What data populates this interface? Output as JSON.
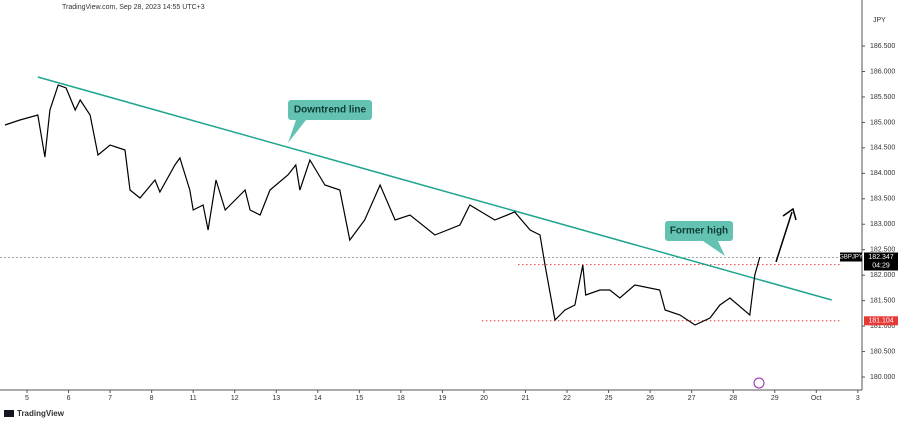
{
  "header": "TradingView.com, Sep 28, 2023 14:55 UTC+3",
  "footer": "TradingView",
  "chart_data": {
    "type": "line",
    "currency": "JPY",
    "symbol": "GBPJPY",
    "last_price": 182.347,
    "countdown": "04:29",
    "annotations": [
      "Downtrend line",
      "Former high"
    ],
    "xlim": [
      -0.65,
      20.1
    ],
    "ylim": [
      179.745,
      187.404
    ],
    "xticks": [
      {
        "value": 0,
        "label": "5"
      },
      {
        "value": 1,
        "label": "6"
      },
      {
        "value": 2,
        "label": "7"
      },
      {
        "value": 3,
        "label": "8"
      },
      {
        "value": 4,
        "label": "11"
      },
      {
        "value": 5,
        "label": "12"
      },
      {
        "value": 6,
        "label": "13"
      },
      {
        "value": 7,
        "label": "14"
      },
      {
        "value": 8,
        "label": "15"
      },
      {
        "value": 9,
        "label": "18"
      },
      {
        "value": 10,
        "label": "19"
      },
      {
        "value": 11,
        "label": "20"
      },
      {
        "value": 12,
        "label": "21"
      },
      {
        "value": 13,
        "label": "22"
      },
      {
        "value": 14,
        "label": "25"
      },
      {
        "value": 15,
        "label": "26"
      },
      {
        "value": 16,
        "label": "27"
      },
      {
        "value": 17,
        "label": "28"
      },
      {
        "value": 18,
        "label": "29"
      },
      {
        "value": 19,
        "label": "Oct"
      },
      {
        "value": 20,
        "label": "3"
      }
    ],
    "yticks": [
      {
        "value": 180,
        "label": "180.000"
      },
      {
        "value": 180.5,
        "label": "180.500"
      },
      {
        "value": 181,
        "label": "181.000"
      },
      {
        "value": 181.5,
        "label": "181.500"
      },
      {
        "value": 182,
        "label": "182.000"
      },
      {
        "value": 182.5,
        "label": "182.500"
      },
      {
        "value": 183,
        "label": "183.000"
      },
      {
        "value": 183.5,
        "label": "183.500"
      },
      {
        "value": 184,
        "label": "184.000"
      },
      {
        "value": 184.5,
        "label": "184.500"
      },
      {
        "value": 185,
        "label": "185.000"
      },
      {
        "value": 185.5,
        "label": "185.500"
      },
      {
        "value": 186,
        "label": "186.000"
      },
      {
        "value": 186.5,
        "label": "186.500"
      }
    ],
    "x": [
      -0.53,
      -0.17,
      0.26,
      0.43,
      0.55,
      0.75,
      0.94,
      1.16,
      1.28,
      1.52,
      1.71,
      2.0,
      2.36,
      2.48,
      2.72,
      3.08,
      3.2,
      3.56,
      3.68,
      3.92,
      4.0,
      4.24,
      4.36,
      4.55,
      4.77,
      5.25,
      5.37,
      5.61,
      5.85,
      6.28,
      6.47,
      6.57,
      6.81,
      7.17,
      7.53,
      7.77,
      8.13,
      8.5,
      8.86,
      9.22,
      9.82,
      10.42,
      10.66,
      11.26,
      11.74,
      12.11,
      12.35,
      12.47,
      12.71,
      12.95,
      13.19,
      13.38,
      13.45,
      13.79,
      14.03,
      14.27,
      14.63,
      15.23,
      15.36,
      15.72,
      16.08,
      16.44,
      16.68,
      16.92,
      17.4,
      17.52,
      17.64
    ],
    "series": [
      {
        "name": "GBPJPY",
        "color": "#000000",
        "values": [
          184.949,
          185.047,
          185.146,
          184.321,
          185.244,
          185.735,
          185.676,
          185.244,
          185.44,
          185.146,
          184.36,
          184.556,
          184.458,
          183.672,
          183.515,
          183.869,
          183.633,
          184.163,
          184.301,
          183.672,
          183.28,
          183.378,
          182.887,
          183.869,
          183.28,
          183.672,
          183.28,
          183.182,
          183.672,
          183.967,
          184.163,
          183.672,
          184.262,
          183.771,
          183.672,
          182.69,
          183.083,
          183.771,
          183.083,
          183.182,
          182.789,
          182.985,
          183.378,
          183.083,
          183.24,
          182.887,
          182.789,
          182.199,
          181.119,
          181.316,
          181.414,
          182.199,
          181.61,
          181.708,
          181.708,
          181.551,
          181.807,
          181.708,
          181.316,
          181.217,
          181.021,
          181.159,
          181.414,
          181.551,
          181.217,
          182.003,
          182.357
        ]
      }
    ],
    "trendline": {
      "color": "#1fa58f",
      "x": [
        0.26,
        19.37
      ],
      "values": [
        185.892,
        181.512
      ]
    },
    "levels": [
      {
        "value": 182.206,
        "start": 11.82,
        "color": "#e53935"
      },
      {
        "value": 181.104,
        "start": 10.95,
        "color": "#e53935"
      }
    ]
  }
}
